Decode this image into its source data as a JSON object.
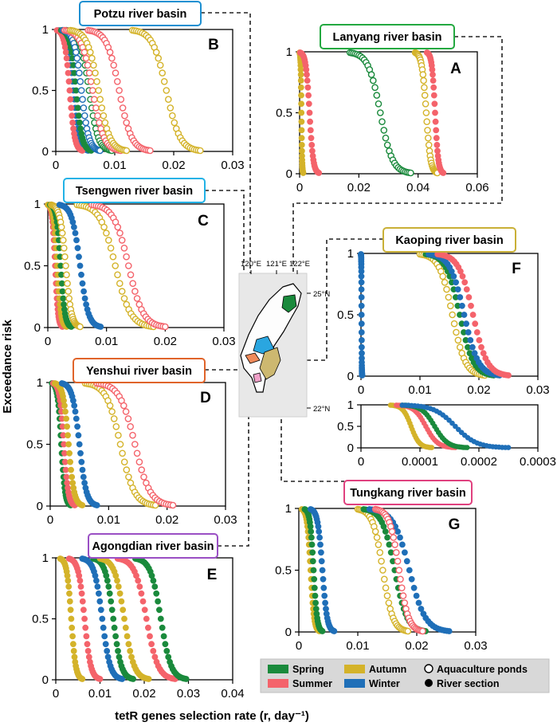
{
  "colors": {
    "Spring": "#1a8a3c",
    "Summer": "#f4636b",
    "Autumn": "#d4b32a",
    "Winter": "#1f6fb8",
    "Map": "#e8e8e8"
  },
  "labels": {
    "y_axis": "Exceedance risk",
    "x_axis": "tetR genes selection rate (r, day⁻¹)",
    "legend": {
      "spring": "Spring",
      "summer": "Summer",
      "autumn": "Autumn",
      "winter": "Winter",
      "ponds": "Aquaculture ponds",
      "river": "River section"
    },
    "map": {
      "lon1": "120°E",
      "lon2": "121°E",
      "lon3": "122°E",
      "lat1": "25°N",
      "lat2": "22°N"
    }
  },
  "chart_data": [
    {
      "id": "B",
      "type": "line",
      "basin": "Potzu river basin",
      "border_color": "#1c8fd1",
      "xlim": [
        0,
        0.03
      ],
      "ylim": [
        0,
        1
      ],
      "xticks": [
        "0",
        "0.01",
        "0.02",
        "0.03"
      ],
      "yticks": [
        "0",
        "0.5",
        "1"
      ],
      "series": [
        {
          "season": "Winter",
          "marker": "filled",
          "x": [
            0.0005,
            0.0055
          ]
        },
        {
          "season": "Summer",
          "marker": "filled",
          "x": [
            0.0002,
            0.0045
          ]
        },
        {
          "season": "Spring",
          "marker": "filled",
          "x": [
            0.0009,
            0.006
          ]
        },
        {
          "season": "Winter",
          "marker": "open",
          "x": [
            0.0012,
            0.0075
          ]
        },
        {
          "season": "Spring",
          "marker": "open",
          "x": [
            0.0018,
            0.0095
          ]
        },
        {
          "season": "Summer",
          "marker": "open",
          "x": [
            0.0015,
            0.011
          ]
        },
        {
          "season": "Autumn",
          "marker": "open",
          "x": [
            0.0025,
            0.012
          ]
        },
        {
          "season": "Summer",
          "marker": "open",
          "x": [
            0.0055,
            0.016
          ]
        },
        {
          "season": "Autumn",
          "marker": "open",
          "x": [
            0.013,
            0.0245
          ]
        }
      ]
    },
    {
      "id": "A",
      "type": "line",
      "basin": "Lanyang river basin",
      "border_color": "#23a840",
      "xlim": [
        0,
        0.06
      ],
      "ylim": [
        0,
        1
      ],
      "xticks": [
        "0",
        "0.02",
        "0.04",
        "0.06"
      ],
      "yticks": [
        "0",
        "0.5",
        "1"
      ],
      "series": [
        {
          "season": "Autumn",
          "marker": "filled",
          "x": [
            0.0,
            0.0012
          ]
        },
        {
          "season": "Summer",
          "marker": "filled",
          "x": [
            0.0002,
            0.0065
          ]
        },
        {
          "season": "Spring",
          "marker": "open",
          "x": [
            0.017,
            0.0375
          ]
        },
        {
          "season": "Autumn",
          "marker": "open",
          "x": [
            0.039,
            0.0465
          ]
        },
        {
          "season": "Summer",
          "marker": "filled",
          "x": [
            0.043,
            0.0485
          ]
        }
      ]
    },
    {
      "id": "C",
      "type": "line",
      "basin": "Tsengwen river basin",
      "border_color": "#22b2e6",
      "xlim": [
        0,
        0.03
      ],
      "ylim": [
        0,
        1
      ],
      "xticks": [
        "0",
        "0.01",
        "0.02",
        "0.03"
      ],
      "yticks": [
        "0",
        "0.5",
        "1"
      ],
      "series": [
        {
          "season": "Summer",
          "marker": "filled",
          "x": [
            0.0,
            0.0025
          ]
        },
        {
          "season": "Autumn",
          "marker": "filled",
          "x": [
            0.0,
            0.0032
          ]
        },
        {
          "season": "Spring",
          "marker": "filled",
          "x": [
            0.0004,
            0.004
          ]
        },
        {
          "season": "Autumn",
          "marker": "open",
          "x": [
            0.0006,
            0.0055
          ]
        },
        {
          "season": "Winter",
          "marker": "filled",
          "x": [
            0.002,
            0.009
          ]
        },
        {
          "season": "Autumn",
          "marker": "open",
          "x": [
            0.005,
            0.018
          ]
        },
        {
          "season": "Summer",
          "marker": "open",
          "x": [
            0.0075,
            0.02
          ]
        }
      ]
    },
    {
      "id": "D",
      "type": "line",
      "basin": "Yenshui river basin",
      "border_color": "#e0642a",
      "xlim": [
        0,
        0.03
      ],
      "ylim": [
        0,
        1
      ],
      "xticks": [
        "0",
        "0.01",
        "0.02",
        "0.03"
      ],
      "yticks": [
        "0",
        "0.5",
        "1"
      ],
      "series": [
        {
          "season": "Spring",
          "marker": "filled",
          "x": [
            0.0003,
            0.0035
          ]
        },
        {
          "season": "Summer",
          "marker": "filled",
          "x": [
            0.0005,
            0.0042
          ]
        },
        {
          "season": "Autumn",
          "marker": "filled",
          "x": [
            0.0008,
            0.0055
          ]
        },
        {
          "season": "Winter",
          "marker": "filled",
          "x": [
            0.002,
            0.008
          ]
        },
        {
          "season": "Autumn",
          "marker": "open",
          "x": [
            0.006,
            0.018
          ]
        },
        {
          "season": "Summer",
          "marker": "open",
          "x": [
            0.008,
            0.021
          ]
        }
      ]
    },
    {
      "id": "E",
      "type": "line",
      "basin": "Agongdian river basin",
      "border_color": "#9a4fc4",
      "xlim": [
        0,
        0.04
      ],
      "ylim": [
        0,
        1
      ],
      "xticks": [
        "0",
        "0.01",
        "0.02",
        "0.03",
        "0.04"
      ],
      "yticks": [
        "0",
        "0.5",
        "1"
      ],
      "series": [
        {
          "season": "Autumn",
          "marker": "filled",
          "x": [
            0.001,
            0.006
          ]
        },
        {
          "season": "Summer",
          "marker": "filled",
          "x": [
            0.003,
            0.01
          ]
        },
        {
          "season": "Winter",
          "marker": "filled",
          "x": [
            0.006,
            0.015
          ]
        },
        {
          "season": "Spring",
          "marker": "filled",
          "x": [
            0.0085,
            0.0175
          ]
        },
        {
          "season": "Autumn",
          "marker": "filled",
          "x": [
            0.01,
            0.021
          ]
        },
        {
          "season": "Summer",
          "marker": "filled",
          "x": [
            0.014,
            0.027
          ]
        },
        {
          "season": "Spring",
          "marker": "filled",
          "x": [
            0.018,
            0.0295
          ]
        }
      ]
    },
    {
      "id": "F",
      "type": "line",
      "basin": "Kaoping river basin",
      "border_color": "#c9b037",
      "xlim": [
        0,
        0.03
      ],
      "ylim": [
        0,
        1
      ],
      "xticks": [
        "0",
        "0.01",
        "0.02",
        "0.03"
      ],
      "yticks": [
        "0",
        "0.5",
        "1"
      ],
      "series": [
        {
          "season": "Winter",
          "marker": "filled",
          "x": [
            0.0,
            0.0002
          ]
        },
        {
          "season": "Autumn",
          "marker": "open",
          "x": [
            0.01,
            0.021
          ]
        },
        {
          "season": "Spring",
          "marker": "filled",
          "x": [
            0.011,
            0.0225
          ]
        },
        {
          "season": "Winter",
          "marker": "filled",
          "x": [
            0.0115,
            0.0235
          ]
        },
        {
          "season": "Summer",
          "marker": "filled",
          "x": [
            0.013,
            0.025
          ]
        }
      ]
    },
    {
      "id": "F-inset",
      "type": "line",
      "basin": "",
      "border_color": "",
      "xlim": [
        0,
        0.0003
      ],
      "ylim": [
        0,
        1
      ],
      "xticks": [
        "0",
        "0.0001",
        "0.0002",
        "0.0003"
      ],
      "yticks": [
        "0",
        "0.5",
        "1"
      ],
      "series": [
        {
          "season": "Autumn",
          "marker": "filled",
          "x": [
            5e-05,
            0.00012
          ]
        },
        {
          "season": "Summer",
          "marker": "filled",
          "x": [
            6e-05,
            0.00016
          ]
        },
        {
          "season": "Spring",
          "marker": "filled",
          "x": [
            7e-05,
            0.00018
          ]
        },
        {
          "season": "Winter",
          "marker": "filled",
          "x": [
            7e-05,
            0.00025
          ]
        }
      ]
    },
    {
      "id": "G",
      "type": "line",
      "basin": "Tungkang river basin",
      "border_color": "#e0417f",
      "xlim": [
        0,
        0.03
      ],
      "ylim": [
        0,
        1
      ],
      "xticks": [
        "0",
        "0.01",
        "0.02",
        "0.03"
      ],
      "yticks": [
        "0",
        "0.5",
        "1"
      ],
      "series": [
        {
          "season": "Autumn",
          "marker": "filled",
          "x": [
            0.0005,
            0.0035
          ]
        },
        {
          "season": "Spring",
          "marker": "filled",
          "x": [
            0.001,
            0.004
          ]
        },
        {
          "season": "Winter",
          "marker": "filled",
          "x": [
            0.002,
            0.006
          ]
        },
        {
          "season": "Autumn",
          "marker": "open",
          "x": [
            0.01,
            0.0185
          ]
        },
        {
          "season": "Spring",
          "marker": "filled",
          "x": [
            0.011,
            0.0215
          ]
        },
        {
          "season": "Winter",
          "marker": "filled",
          "x": [
            0.012,
            0.0255
          ]
        },
        {
          "season": "Summer",
          "marker": "open",
          "x": [
            0.013,
            0.021
          ]
        }
      ]
    }
  ]
}
